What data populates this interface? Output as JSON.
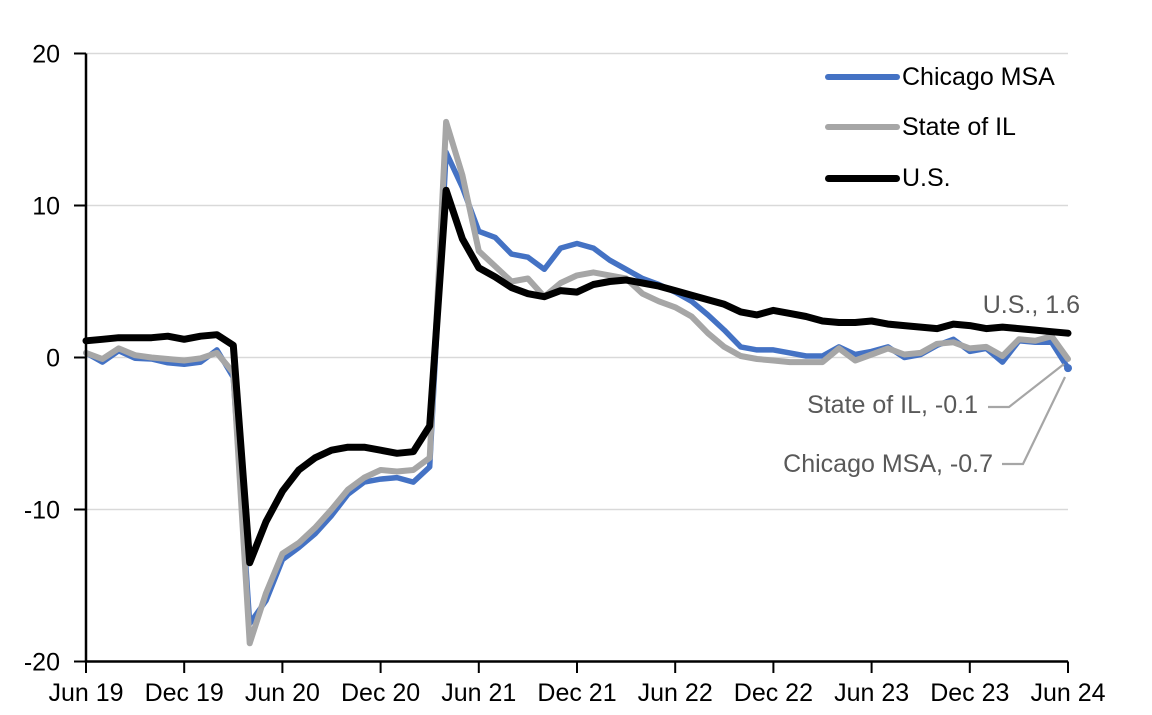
{
  "chart_data": {
    "type": "line",
    "title": "",
    "xlabel": "",
    "ylabel": "",
    "x_unit": "month",
    "x_start": "Jun 2019",
    "x_end": "Jun 2024",
    "x_tick_labels": [
      "Jun 19",
      "Dec 19",
      "Jun 20",
      "Dec 20",
      "Jun 21",
      "Dec 21",
      "Jun 22",
      "Dec 22",
      "Jun 23",
      "Dec 23",
      "Jun 24"
    ],
    "months_between_ticks": 6,
    "ylim": [
      -20,
      20
    ],
    "y_tick_labels": [
      "20",
      "10",
      "0",
      "-10",
      "-20"
    ],
    "grid": "horizontal-light",
    "legend_position": "top-right-inside",
    "series": [
      {
        "name": "Chicago MSA",
        "color": "#4472C4",
        "stroke_width": 5.5,
        "end_marker": true,
        "end_value": -0.7,
        "values": [
          0.3,
          -0.3,
          0.45,
          -0.05,
          -0.1,
          -0.35,
          -0.45,
          -0.3,
          0.5,
          -1.3,
          -17.5,
          -16.0,
          -13.3,
          -12.5,
          -11.6,
          -10.4,
          -9.0,
          -8.2,
          -8.0,
          -7.9,
          -8.2,
          -7.2,
          13.5,
          11.2,
          8.3,
          7.9,
          6.8,
          6.6,
          5.8,
          7.2,
          7.5,
          7.2,
          6.4,
          5.8,
          5.2,
          4.8,
          4.3,
          3.7,
          2.8,
          1.8,
          0.7,
          0.5,
          0.5,
          0.3,
          0.1,
          0.1,
          0.7,
          0.2,
          0.4,
          0.7,
          0.0,
          0.2,
          0.8,
          1.2,
          0.4,
          0.6,
          -0.3,
          1.1,
          1.0,
          1.0,
          -0.7
        ]
      },
      {
        "name": "State of IL",
        "color": "#A6A6A6",
        "stroke_width": 6,
        "end_marker": false,
        "end_value": -0.1,
        "values": [
          0.3,
          -0.1,
          0.6,
          0.15,
          0.0,
          -0.1,
          -0.2,
          -0.05,
          0.3,
          -1.0,
          -18.8,
          -15.5,
          -12.9,
          -12.2,
          -11.2,
          -10.0,
          -8.7,
          -7.9,
          -7.4,
          -7.5,
          -7.4,
          -6.6,
          15.5,
          12.0,
          7.0,
          6.0,
          5.0,
          5.2,
          4.0,
          4.9,
          5.4,
          5.6,
          5.4,
          5.2,
          4.2,
          3.7,
          3.3,
          2.7,
          1.6,
          0.7,
          0.1,
          -0.1,
          -0.2,
          -0.3,
          -0.3,
          -0.3,
          0.6,
          -0.2,
          0.2,
          0.6,
          0.2,
          0.3,
          0.9,
          1.0,
          0.6,
          0.7,
          0.1,
          1.2,
          1.1,
          1.4,
          -0.1
        ]
      },
      {
        "name": "U.S.",
        "color": "#000000",
        "stroke_width": 7,
        "end_marker": false,
        "end_value": 1.6,
        "values": [
          1.1,
          1.2,
          1.3,
          1.3,
          1.3,
          1.4,
          1.2,
          1.4,
          1.5,
          0.8,
          -13.5,
          -10.8,
          -8.8,
          -7.4,
          -6.6,
          -6.1,
          -5.9,
          -5.9,
          -6.1,
          -6.3,
          -6.2,
          -4.5,
          11.0,
          7.8,
          5.9,
          5.3,
          4.6,
          4.2,
          4.0,
          4.4,
          4.3,
          4.8,
          5.0,
          5.1,
          4.9,
          4.7,
          4.4,
          4.1,
          3.8,
          3.5,
          3.0,
          2.8,
          3.1,
          2.9,
          2.7,
          2.4,
          2.3,
          2.3,
          2.4,
          2.2,
          2.1,
          2.0,
          1.9,
          2.2,
          2.1,
          1.9,
          2.0,
          1.9,
          1.8,
          1.7,
          1.6
        ]
      }
    ],
    "annotations": [
      {
        "text": "U.S., 1.6",
        "series": "U.S."
      },
      {
        "text": "State of IL, -0.1",
        "series": "State of IL"
      },
      {
        "text": "Chicago MSA, -0.7",
        "series": "Chicago MSA"
      }
    ]
  },
  "legend": {
    "items": [
      {
        "label": "Chicago MSA",
        "color": "#4472C4"
      },
      {
        "label": "State of IL",
        "color": "#A6A6A6"
      },
      {
        "label": "U.S.",
        "color": "#000000"
      }
    ]
  },
  "colors": {
    "background": "#FFFFFF",
    "gridline": "#D9D9D9",
    "axis": "#000000",
    "tick_label": "#000000",
    "annotation_text": "#595959",
    "leader_line": "#A6A6A6"
  }
}
